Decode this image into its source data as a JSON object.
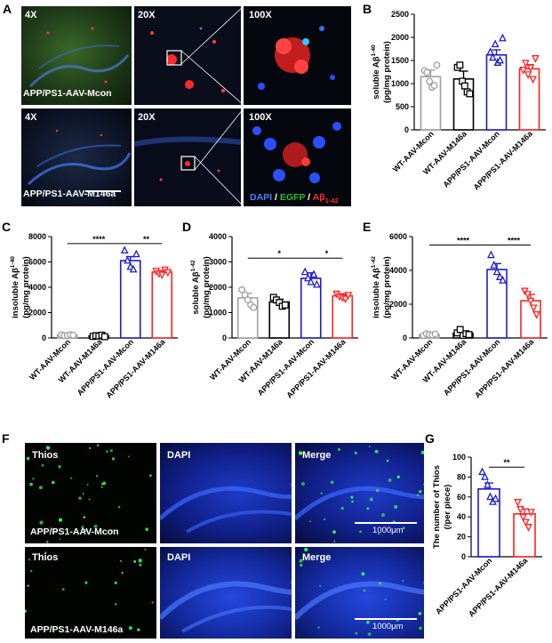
{
  "panels": {
    "A": "A",
    "B": "B",
    "C": "C",
    "D": "D",
    "E": "E",
    "F": "F",
    "G": "G"
  },
  "panel_a": {
    "mag_labels": [
      "4X",
      "20X",
      "100X",
      "4X",
      "20X",
      "100X"
    ],
    "group_mcon": "APP/PS1-AAV-Mcon",
    "group_m146a": "APP/PS1-AAV-M146a",
    "legend": {
      "dapi": "DAPI",
      "sep1": " / ",
      "egfp": "EGFP",
      "sep2": " / ",
      "abeta": "Aβ",
      "abeta_sub": "1-42"
    },
    "colors": {
      "dapi": "#4f7bff",
      "egfp": "#22c02a",
      "abeta": "#ff2a2a"
    }
  },
  "panel_f": {
    "col_labels": [
      "Thios",
      "DAPI",
      "Merge",
      "Thios",
      "DAPI",
      "Merge"
    ],
    "group_mcon": "APP/PS1-AAV-Mcon",
    "group_m146a": "APP/PS1-AAV-M146a",
    "scale_text": "1000μm"
  },
  "colors": {
    "gray": "#a0a0a0",
    "black": "#000000",
    "blue": "#1c1ccc",
    "red": "#ff2020"
  },
  "chart_data": [
    {
      "id": "B",
      "type": "bar",
      "ylabel_line1": "soluble  Aβ",
      "ylabel_sub": "1-40",
      "ylabel_line2": "(pg/mg protein)",
      "categories": [
        "WT-AAV-Mcon",
        "WT-AAV-M146a",
        "APP/PS1-AAV-Mcon",
        "APP/PS1-AAV-M146a"
      ],
      "values": [
        1150,
        1100,
        1620,
        1320
      ],
      "errors": [
        140,
        170,
        110,
        90
      ],
      "points": [
        [
          1280,
          1240,
          1050,
          920,
          960,
          1400
        ],
        [
          1350,
          1400,
          1050,
          950,
          820,
          780
        ],
        [
          1680,
          1560,
          1850,
          1450,
          1500,
          1980
        ],
        [
          1300,
          1450,
          1200,
          1350,
          1100,
          1550
        ]
      ],
      "ylim": [
        0,
        2500
      ],
      "yticks": [
        0,
        500,
        1000,
        1500,
        2000,
        2500
      ],
      "ytick_labels": [
        "0",
        "500",
        "1000",
        "1500",
        "2000",
        "2500"
      ],
      "significance": []
    },
    {
      "id": "C",
      "type": "bar",
      "ylabel_line1": "insoluble  Aβ",
      "ylabel_sub": "1-40",
      "ylabel_line2": "(pg/mg protein)",
      "categories": [
        "WT-AAV-Mcon",
        "WT-AAV-M146a",
        "APP/PS1-AAV-Mcon",
        "APP/PS1-AAV-M146a"
      ],
      "values": [
        220,
        160,
        6100,
        5200
      ],
      "errors": [
        40,
        50,
        320,
        120
      ],
      "points": [
        [
          250,
          180,
          200,
          260,
          220
        ],
        [
          120,
          180,
          150,
          220,
          100
        ],
        [
          6900,
          6100,
          5600,
          5400,
          6600
        ],
        [
          5300,
          5100,
          5000,
          5400,
          5200
        ]
      ],
      "ylim": [
        0,
        8000
      ],
      "yticks": [
        0,
        2000,
        4000,
        6000,
        8000
      ],
      "ytick_labels": [
        "0",
        "2000",
        "4000",
        "6000",
        "8000"
      ],
      "significance": [
        {
          "from": 0,
          "to": 2,
          "y": 7450,
          "label": "****"
        },
        {
          "from": 2,
          "to": 3,
          "y": 7450,
          "label": "**"
        }
      ]
    },
    {
      "id": "D",
      "type": "bar",
      "ylabel_line1": "soluble  Aβ",
      "ylabel_sub": "1-42",
      "ylabel_line2": "(pg/mg protein)",
      "categories": [
        "WT-AAV-Mcon",
        "WT-AAV-M146a",
        "APP/PS1-AAV-Mcon",
        "APP/PS1-AAV-M146a"
      ],
      "values": [
        1580,
        1420,
        2350,
        1660
      ],
      "errors": [
        180,
        110,
        220,
        80
      ],
      "points": [
        [
          1900,
          1700,
          1500,
          1300,
          1200
        ],
        [
          1600,
          1500,
          1400,
          1250,
          1300
        ],
        [
          2600,
          2350,
          2200,
          2500,
          2100
        ],
        [
          1750,
          1650,
          1600,
          1550,
          1700
        ]
      ],
      "ylim": [
        0,
        4000
      ],
      "yticks": [
        0,
        1000,
        2000,
        3000,
        4000
      ],
      "ytick_labels": [
        "0",
        "1000",
        "2000",
        "3000",
        "4000"
      ],
      "significance": [
        {
          "from": 0,
          "to": 2,
          "y": 3150,
          "label": "*"
        },
        {
          "from": 2,
          "to": 3,
          "y": 3150,
          "label": "*"
        }
      ]
    },
    {
      "id": "E",
      "type": "bar",
      "ylabel_line1": "insoluble  Aβ",
      "ylabel_sub": "1-42",
      "ylabel_line2": "(pg/mg protein)",
      "categories": [
        "WT-AAV-Mcon",
        "WT-AAV-M146a",
        "APP/PS1-AAV-Mcon",
        "APP/PS1-AAV-M146a"
      ],
      "values": [
        200,
        280,
        4050,
        2200
      ],
      "errors": [
        50,
        120,
        350,
        380
      ],
      "points": [
        [
          150,
          250,
          200,
          180,
          230
        ],
        [
          300,
          500,
          150,
          250,
          200
        ],
        [
          4900,
          4300,
          3900,
          3600,
          3400
        ],
        [
          2800,
          2600,
          2200,
          1800,
          1400
        ]
      ],
      "ylim": [
        0,
        6000
      ],
      "yticks": [
        0,
        2000,
        4000,
        6000
      ],
      "ytick_labels": [
        "0",
        "2000",
        "4000",
        "6000"
      ],
      "significance": [
        {
          "from": 0,
          "to": 2,
          "y": 5500,
          "label": "****"
        },
        {
          "from": 2,
          "to": 3,
          "y": 5500,
          "label": "****"
        }
      ]
    },
    {
      "id": "G",
      "type": "bar",
      "ylabel_line1": "The number of Thios",
      "ylabel_sub": "",
      "ylabel_line2": "(/per piece)",
      "categories": [
        "APP/PS1-AAV-Mcon",
        "APP/PS1-AAV-M146a"
      ],
      "values": [
        68,
        43
      ],
      "errors": [
        6,
        5
      ],
      "points": [
        [
          85,
          80,
          72,
          60,
          55,
          58
        ],
        [
          55,
          48,
          40,
          35,
          30,
          45
        ]
      ],
      "ylim": [
        0,
        100
      ],
      "yticks": [
        0,
        20,
        40,
        60,
        80,
        100
      ],
      "ytick_labels": [
        "0",
        "20",
        "40",
        "60",
        "80",
        "100"
      ],
      "significance": [
        {
          "from": 0,
          "to": 1,
          "y": 90,
          "label": "**"
        }
      ]
    }
  ]
}
